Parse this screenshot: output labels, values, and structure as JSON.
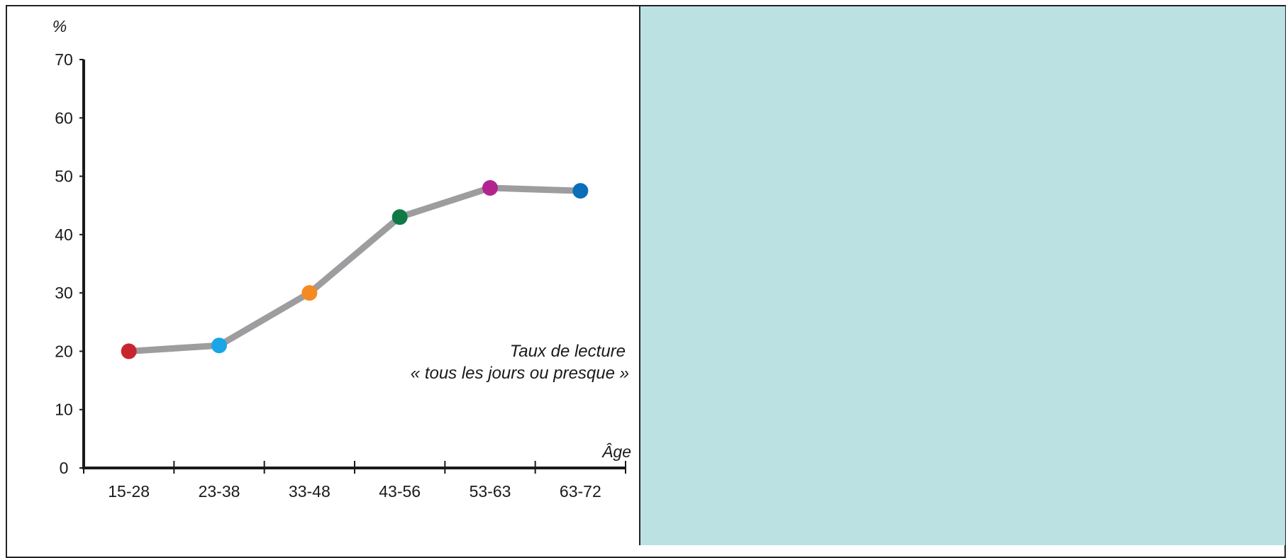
{
  "chart_data": {
    "type": "line",
    "y_unit_label": "%",
    "xlabel": "Âge",
    "ylabel": "%",
    "categories": [
      "15-28",
      "23-38",
      "33-48",
      "43-56",
      "53-63",
      "63-72"
    ],
    "y_ticks": [
      0,
      10,
      20,
      30,
      40,
      50,
      60,
      70
    ],
    "y_tick_labels": [
      "0",
      "10",
      "20",
      "30",
      "40",
      "50",
      "60",
      "70"
    ],
    "ylim": [
      0,
      70
    ],
    "series": [
      {
        "name": "Taux de lecture « tous les jours ou presque »",
        "values": [
          20,
          21,
          30,
          43,
          48,
          47.5
        ],
        "line_color": "#9d9d9f",
        "point_colors": [
          "#c8262e",
          "#1aa6e6",
          "#f58a22",
          "#0f7a46",
          "#b3238f",
          "#0a6fb8"
        ]
      }
    ],
    "annotation": {
      "line1": "Taux de lecture",
      "line2": "« tous les jours ou presque »"
    },
    "grid": false,
    "legend": "none"
  },
  "right_panel": {
    "color": "#bce1e3"
  }
}
